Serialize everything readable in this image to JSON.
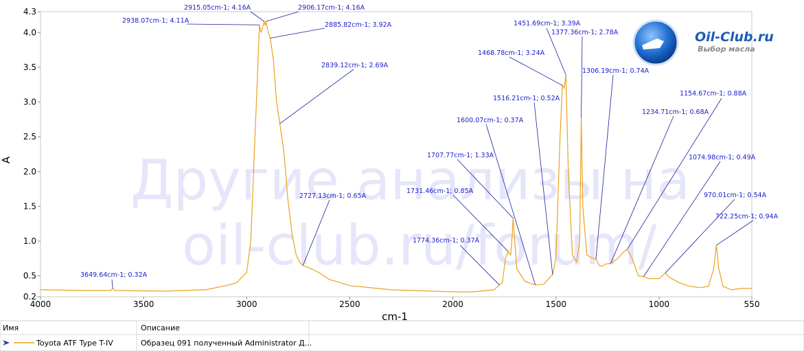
{
  "chart_data": {
    "type": "line",
    "x_label": "cm-1",
    "y_label": "A",
    "xlim": [
      4000,
      550
    ],
    "ylim": [
      0.2,
      4.3
    ],
    "xticks": [
      4000,
      3500,
      3000,
      2500,
      2000,
      1500,
      1000,
      550
    ],
    "yticks": [
      0.2,
      0.5,
      {
        "value": 1,
        "label": "1.0"
      },
      1.5,
      {
        "value": 2,
        "label": "2.0"
      },
      2.5,
      {
        "value": 3,
        "label": "3.0"
      },
      3.5,
      {
        "value": 4,
        "label": "4.0"
      },
      4.3
    ],
    "grid": false,
    "x": [
      4000,
      3800,
      3660,
      3649.64,
      3640,
      3400,
      3200,
      3100,
      3050,
      3000,
      2980,
      2960,
      2950,
      2938.07,
      2930,
      2915.05,
      2910,
      2906.17,
      2895,
      2885.82,
      2870,
      2855,
      2839.12,
      2820,
      2800,
      2780,
      2760,
      2740,
      2727.13,
      2700,
      2650,
      2600,
      2500,
      2300,
      2100,
      2000,
      1900,
      1800,
      1774.36,
      1760,
      1745,
      1731.46,
      1720,
      1712,
      1707.77,
      1700,
      1690,
      1650,
      1600.07,
      1560,
      1516.21,
      1500,
      1480,
      1468.78,
      1460,
      1451.69,
      1440,
      1420,
      1400,
      1385,
      1377.36,
      1370,
      1350,
      1320,
      1306.19,
      1290,
      1275,
      1260,
      1234.71,
      1200,
      1170,
      1154.67,
      1130,
      1100,
      1074.98,
      1050,
      1000,
      970.01,
      950,
      900,
      850,
      800,
      760,
      735,
      722.25,
      710,
      690,
      650,
      600,
      550
    ],
    "series": [
      {
        "name": "Toyota ATF Type T-IV",
        "color": "#eba21c",
        "values": [
          0.3,
          0.29,
          0.29,
          0.32,
          0.29,
          0.28,
          0.3,
          0.36,
          0.4,
          0.55,
          1.0,
          2.5,
          3.2,
          4.11,
          4.0,
          4.16,
          4.1,
          4.16,
          4.0,
          3.92,
          3.6,
          3.0,
          2.69,
          2.3,
          1.6,
          1.1,
          0.8,
          0.68,
          0.65,
          0.62,
          0.55,
          0.45,
          0.36,
          0.3,
          0.28,
          0.27,
          0.27,
          0.3,
          0.37,
          0.4,
          0.75,
          0.85,
          0.8,
          1.1,
          1.33,
          1.0,
          0.6,
          0.42,
          0.37,
          0.38,
          0.52,
          0.75,
          2.5,
          3.24,
          3.2,
          3.39,
          2.0,
          0.8,
          0.7,
          1.0,
          2.78,
          1.5,
          0.8,
          0.75,
          0.74,
          0.65,
          0.64,
          0.67,
          0.68,
          0.75,
          0.85,
          0.88,
          0.75,
          0.5,
          0.49,
          0.46,
          0.46,
          0.54,
          0.48,
          0.4,
          0.35,
          0.33,
          0.35,
          0.6,
          0.94,
          0.6,
          0.35,
          0.3,
          0.32,
          0.32
        ]
      }
    ],
    "annotations": [
      {
        "label": "3649.64cm-1; 0.32A",
        "x": 3649.64,
        "y": 0.32
      },
      {
        "label": "2938.07cm-1; 4.11A",
        "x": 2938.07,
        "y": 4.11
      },
      {
        "label": "2915.05cm-1; 4.16A",
        "x": 2915.05,
        "y": 4.16
      },
      {
        "label": "2906.17cm-1; 4.16A",
        "x": 2906.17,
        "y": 4.16
      },
      {
        "label": "2885.82cm-1; 3.92A",
        "x": 2885.82,
        "y": 3.92
      },
      {
        "label": "2839.12cm-1; 2.69A",
        "x": 2839.12,
        "y": 2.69
      },
      {
        "label": "2727.13cm-1; 0.65A",
        "x": 2727.13,
        "y": 0.65
      },
      {
        "label": "1774.36cm-1; 0.37A",
        "x": 1774.36,
        "y": 0.37
      },
      {
        "label": "1731.46cm-1; 0.85A",
        "x": 1731.46,
        "y": 0.85
      },
      {
        "label": "1707.77cm-1; 1.33A",
        "x": 1707.77,
        "y": 1.33
      },
      {
        "label": "1600.07cm-1; 0.37A",
        "x": 1600.07,
        "y": 0.37
      },
      {
        "label": "1516.21cm-1; 0.52A",
        "x": 1516.21,
        "y": 0.52
      },
      {
        "label": "1468.78cm-1; 3.24A",
        "x": 1468.78,
        "y": 3.24
      },
      {
        "label": "1451.69cm-1; 3.39A",
        "x": 1451.69,
        "y": 3.39
      },
      {
        "label": "1377.36cm-1; 2.78A",
        "x": 1377.36,
        "y": 2.78
      },
      {
        "label": "1306.19cm-1; 0.74A",
        "x": 1306.19,
        "y": 0.74
      },
      {
        "label": "1234.71cm-1; 0.68A",
        "x": 1234.71,
        "y": 0.68
      },
      {
        "label": "1154.67cm-1; 0.88A",
        "x": 1154.67,
        "y": 0.88
      },
      {
        "label": "1074.98cm-1; 0.49A",
        "x": 1074.98,
        "y": 0.49
      },
      {
        "label": "970.01cm-1; 0.54A",
        "x": 970.01,
        "y": 0.54
      },
      {
        "label": "722.25cm-1; 0.94A",
        "x": 722.25,
        "y": 0.94
      }
    ]
  },
  "watermark": [
    "Другие анализы на",
    "oil-club.ru/forum/"
  ],
  "logo": {
    "title": "Oil-Club.ru",
    "subtitle": "Выбор масла"
  },
  "table": {
    "columns": [
      "Имя",
      "Описание"
    ],
    "description": "Образец 091 полученный Administrator Д..."
  }
}
